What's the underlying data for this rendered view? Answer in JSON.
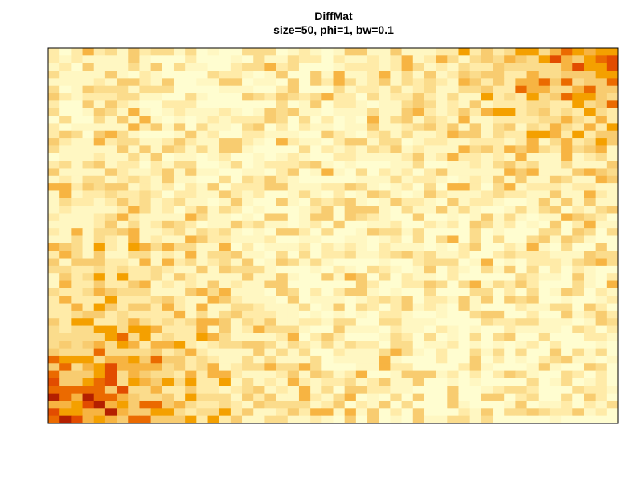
{
  "chart_data": {
    "type": "heatmap",
    "title": "DiffMat",
    "subtitle": "size=50, phi=1, bw=0.1",
    "xlabel": "",
    "ylabel": "",
    "grid": false,
    "legend": "none",
    "colormap": "heat (R heat.colors)",
    "value_range": [
      0,
      1
    ],
    "rows": 50,
    "cols": 50,
    "colors": [
      "#FFFDD0",
      "#FFF7C2",
      "#FFEBA8",
      "#FBDC8C",
      "#F8CC70",
      "#F7B442",
      "#F4A000",
      "#EB6A00",
      "#E24C00",
      "#B42000",
      "#8B0000"
    ]
  }
}
